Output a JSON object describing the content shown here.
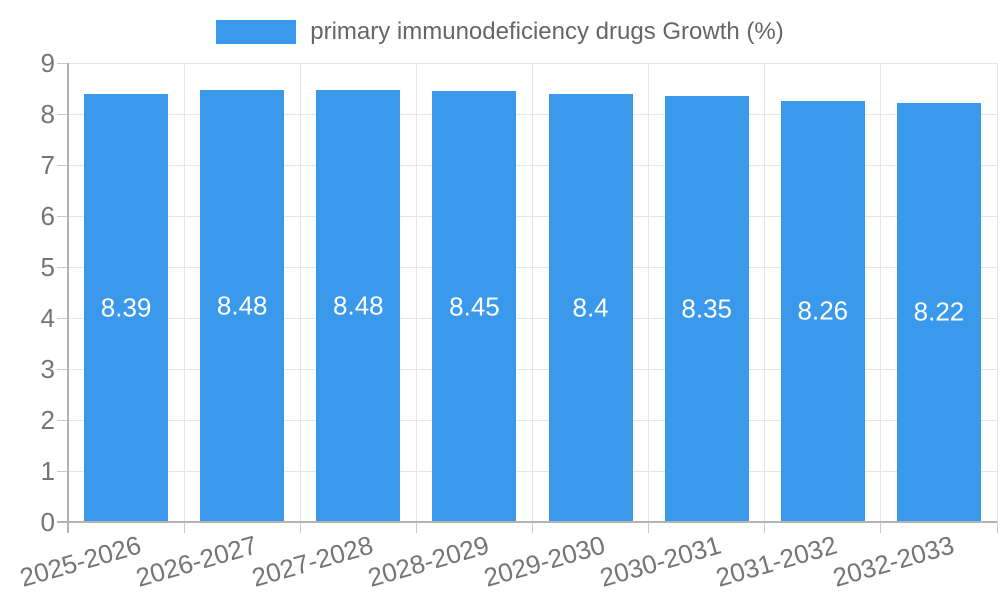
{
  "chart_data": {
    "type": "bar",
    "title": "",
    "legend": {
      "label": "primary immunodeficiency drugs Growth (%)",
      "position": "top"
    },
    "categories": [
      "2025-2026",
      "2026-2027",
      "2027-2028",
      "2028-2029",
      "2029-2030",
      "2030-2031",
      "2031-2032",
      "2032-2033"
    ],
    "values": [
      8.39,
      8.48,
      8.48,
      8.45,
      8.4,
      8.35,
      8.26,
      8.22
    ],
    "value_labels": [
      "8.39",
      "8.48",
      "8.48",
      "8.45",
      "8.4",
      "8.35",
      "8.26",
      "8.22"
    ],
    "xlabel": "",
    "ylabel": "",
    "ylim": [
      0,
      9
    ],
    "y_ticks": [
      0,
      1,
      2,
      3,
      4,
      5,
      6,
      7,
      8,
      9
    ],
    "grid": true,
    "colors": {
      "bar": "#3B99EC",
      "bar_value_text": "#ffffff",
      "gridline": "#E6E6E6",
      "tick": "#C9C9C9",
      "axis_line": "#B3B3B3",
      "axis_text": "#757575",
      "legend_text": "#666666",
      "background": "#ffffff"
    }
  }
}
